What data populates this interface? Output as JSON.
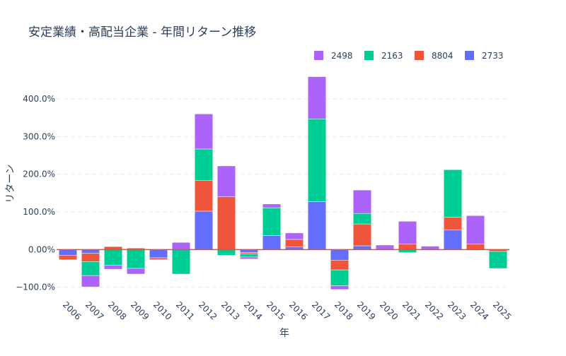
{
  "chart_data": {
    "type": "bar",
    "barmode": "relative",
    "title": "安定業績・高配当企業 - 年間リターン推移",
    "xlabel": "年",
    "ylabel": "リターン",
    "categories": [
      "2006",
      "2007",
      "2008",
      "2009",
      "2010",
      "2011",
      "2012",
      "2013",
      "2014",
      "2015",
      "2016",
      "2017",
      "2018",
      "2019",
      "2020",
      "2021",
      "2022",
      "2023",
      "2024",
      "2025"
    ],
    "ylim": [
      -125,
      475
    ],
    "yticks": [
      -100,
      0,
      100,
      200,
      300,
      400
    ],
    "ytick_labels": [
      "−100.0%",
      "0.00%",
      "100.0%",
      "200.0%",
      "300.0%",
      "400.0%"
    ],
    "legend_position": "top-right",
    "series": [
      {
        "name": "2733",
        "color": "#636efa",
        "values": [
          -15,
          -10,
          0,
          0,
          -22,
          0,
          102,
          0,
          -8,
          37,
          7,
          127,
          -28,
          10,
          0,
          0,
          0,
          52,
          0,
          0
        ]
      },
      {
        "name": "8804",
        "color": "#ef553b",
        "values": [
          -12,
          -22,
          8,
          4,
          -5,
          0,
          81,
          140,
          -3,
          0,
          20,
          0,
          -26,
          58,
          0,
          15,
          0,
          34,
          15,
          -5
        ]
      },
      {
        "name": "2163",
        "color": "#00cc96",
        "values": [
          0,
          -37,
          -42,
          -50,
          0,
          -65,
          84,
          -15,
          -9,
          74,
          0,
          220,
          -42,
          28,
          0,
          -8,
          0,
          126,
          0,
          -45
        ]
      },
      {
        "name": "2498",
        "color": "#ab63fa",
        "values": [
          0,
          -30,
          -10,
          -15,
          0,
          19,
          93,
          82,
          -5,
          10,
          17,
          112,
          -10,
          62,
          12,
          60,
          9,
          0,
          75,
          0
        ]
      }
    ],
    "legend_order": [
      "2498",
      "2163",
      "8804",
      "2733"
    ]
  }
}
